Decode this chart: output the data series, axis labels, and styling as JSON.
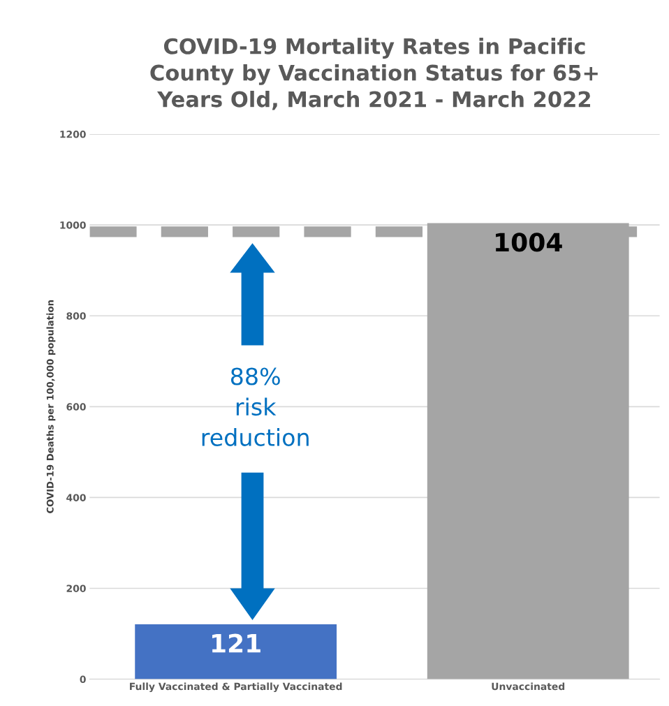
{
  "chart_data": {
    "type": "bar",
    "title": "COVID-19 Mortality Rates in Pacific\nCounty by Vaccination Status for 65+\nYears Old, March 2021 - March 2022",
    "ylabel": "COVID-19 Deaths per 100,000 population",
    "categories": [
      "Fully Vaccinated & Partially Vaccinated",
      "Unvaccinated"
    ],
    "values": [
      121,
      1004
    ],
    "colors": [
      "#4472c4",
      "#a5a5a5"
    ],
    "ylim": [
      0,
      1200
    ],
    "yticks": [
      0,
      200,
      400,
      600,
      800,
      1000,
      1200
    ],
    "grid": "y",
    "data_labels": true,
    "ref_lines": [
      {
        "axis": "y",
        "value": 985,
        "color": "#a5a5a5",
        "line_style": "dashed"
      }
    ],
    "annotations": [
      "88%\nrisk\nreduction"
    ]
  }
}
